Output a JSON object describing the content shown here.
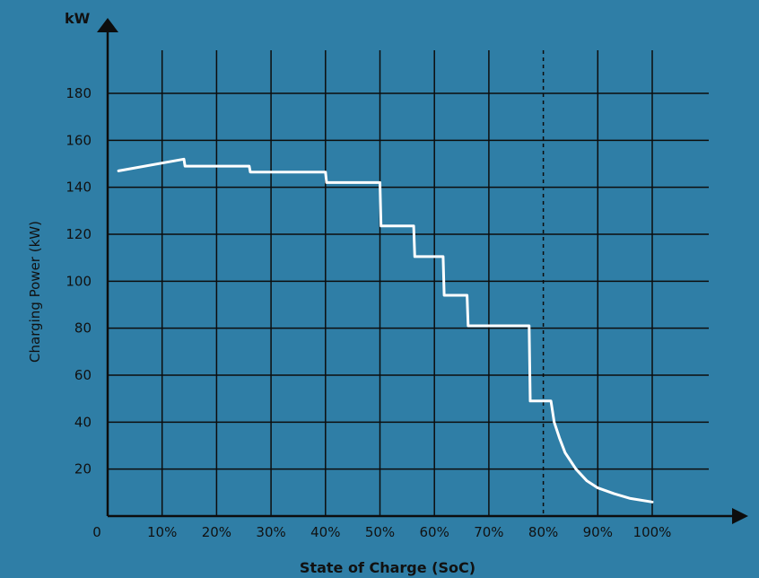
{
  "chart_data": {
    "type": "line",
    "title": "",
    "xlabel": "State of Charge (SoC)",
    "ylabel": "Charging Power (kW)",
    "y_unit_label": "kW",
    "x_tick_labels": [
      "0",
      "10%",
      "20%",
      "30%",
      "40%",
      "50%",
      "60%",
      "70%",
      "80%",
      "90%",
      "100%"
    ],
    "y_tick_labels": [
      "20",
      "40",
      "60",
      "80",
      "100",
      "120",
      "140",
      "160",
      "180"
    ],
    "xlim": [
      0,
      100
    ],
    "ylim": [
      0,
      200
    ],
    "grid": true,
    "reference_line": {
      "x": 80,
      "style": "dashed"
    },
    "series": [
      {
        "x": [
          2,
          14,
          14.2,
          26,
          26.2,
          40,
          40.2,
          50,
          50.2,
          56.2,
          56.4,
          61.6,
          61.8,
          66,
          66.2,
          77.4,
          77.6,
          81.4,
          82,
          83,
          84,
          86,
          88,
          90,
          93,
          96,
          100
        ],
        "y": [
          147,
          152,
          149,
          149,
          146.5,
          146.5,
          142,
          142,
          123.5,
          123.5,
          110.5,
          110.5,
          94,
          94,
          81,
          81,
          49,
          49,
          40,
          33,
          27,
          20,
          15,
          12,
          9.5,
          7.5,
          6
        ]
      }
    ],
    "colors": {
      "background": "#2f7ea6",
      "grid": "#0d0d0d",
      "line": "#ffffff",
      "text": "#111111"
    }
  }
}
